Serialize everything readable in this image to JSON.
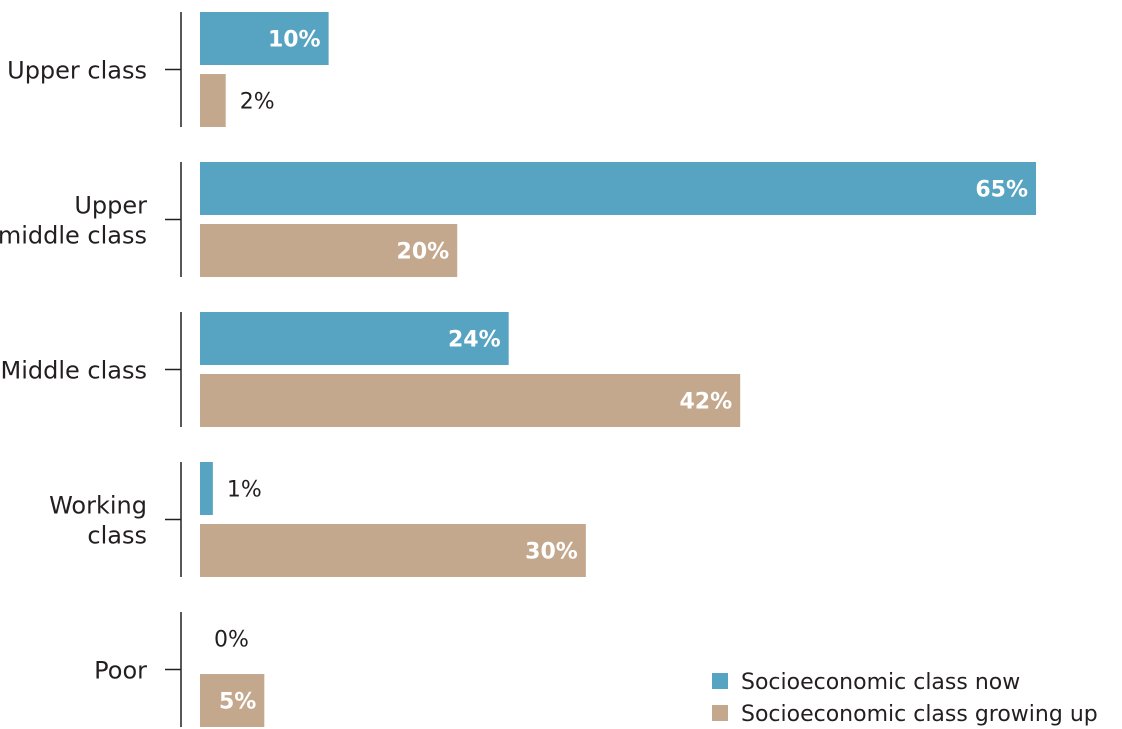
{
  "colors": {
    "now": "#56a3c2",
    "growing_up": "#c4a88e",
    "text": "#231f20",
    "inside_label": "#ffffff"
  },
  "chart_data": {
    "type": "bar",
    "orientation": "horizontal",
    "categories": [
      [
        "Upper class"
      ],
      [
        "Upper",
        "middle class"
      ],
      [
        "Middle class"
      ],
      [
        "Working",
        "class"
      ],
      [
        "Poor"
      ]
    ],
    "series": [
      {
        "name": "Socioeconomic class now",
        "values": [
          10,
          65,
          24,
          1,
          0
        ]
      },
      {
        "name": "Socioeconomic class growing up",
        "values": [
          2,
          20,
          42,
          30,
          5
        ]
      }
    ],
    "value_labels": [
      [
        "10%",
        "65%",
        "24%",
        "1%",
        "0%"
      ],
      [
        "2%",
        "20%",
        "42%",
        "30%",
        "5%"
      ]
    ],
    "unit": "%",
    "xlim": [
      0,
      65
    ],
    "grid": false,
    "legend_position": "bottom-right"
  }
}
